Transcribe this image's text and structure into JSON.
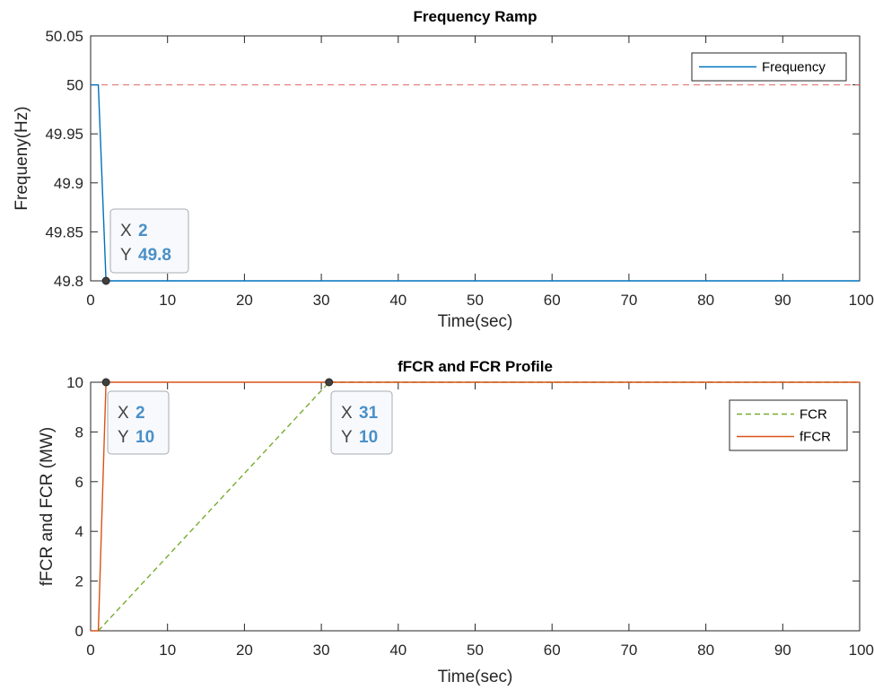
{
  "chart_data": [
    {
      "type": "line",
      "title": "Frequency Ramp",
      "xlabel": "Time(sec)",
      "ylabel": "Frequeny(Hz)",
      "xlim": [
        0,
        100
      ],
      "ylim": [
        49.8,
        50.05
      ],
      "xticks": [
        0,
        10,
        20,
        30,
        40,
        50,
        60,
        70,
        80,
        90,
        100
      ],
      "yticks": [
        "49.8",
        "49.85",
        "49.9",
        "49.95",
        "50",
        "50.05"
      ],
      "grid": false,
      "legend": "top-right",
      "series": [
        {
          "name": "Frequency",
          "color": "#0072bd",
          "style": "solid",
          "x": [
            0,
            1,
            2,
            100
          ],
          "y": [
            50,
            50,
            49.8,
            49.8
          ]
        }
      ],
      "reference_lines": [
        {
          "y": 50,
          "color": "#e06666",
          "style": "dashed"
        }
      ],
      "datatips": [
        {
          "x": 2,
          "y": 49.8,
          "x_label": "X",
          "y_label": "Y",
          "x_text": "2",
          "y_text": "49.8"
        }
      ]
    },
    {
      "type": "line",
      "title": "fFCR and FCR Profile",
      "xlabel": "Time(sec)",
      "ylabel": "fFCR and FCR (MW)",
      "xlim": [
        0,
        100
      ],
      "ylim": [
        0,
        10
      ],
      "xticks": [
        0,
        10,
        20,
        30,
        40,
        50,
        60,
        70,
        80,
        90,
        100
      ],
      "yticks": [
        "0",
        "2",
        "4",
        "6",
        "8",
        "10"
      ],
      "grid": false,
      "legend": "top-right",
      "series": [
        {
          "name": "FCR",
          "color": "#77ac30",
          "style": "dashed",
          "x": [
            1,
            31,
            100
          ],
          "y": [
            0,
            10,
            10
          ]
        },
        {
          "name": "fFCR",
          "color": "#d95319",
          "style": "solid",
          "x": [
            0,
            1,
            2,
            100
          ],
          "y": [
            0,
            0,
            10,
            10
          ]
        }
      ],
      "datatips": [
        {
          "x": 2,
          "y": 10,
          "x_label": "X",
          "y_label": "Y",
          "x_text": "2",
          "y_text": "10"
        },
        {
          "x": 31,
          "y": 10,
          "x_label": "X",
          "y_label": "Y",
          "x_text": "31",
          "y_text": "10"
        }
      ]
    }
  ]
}
